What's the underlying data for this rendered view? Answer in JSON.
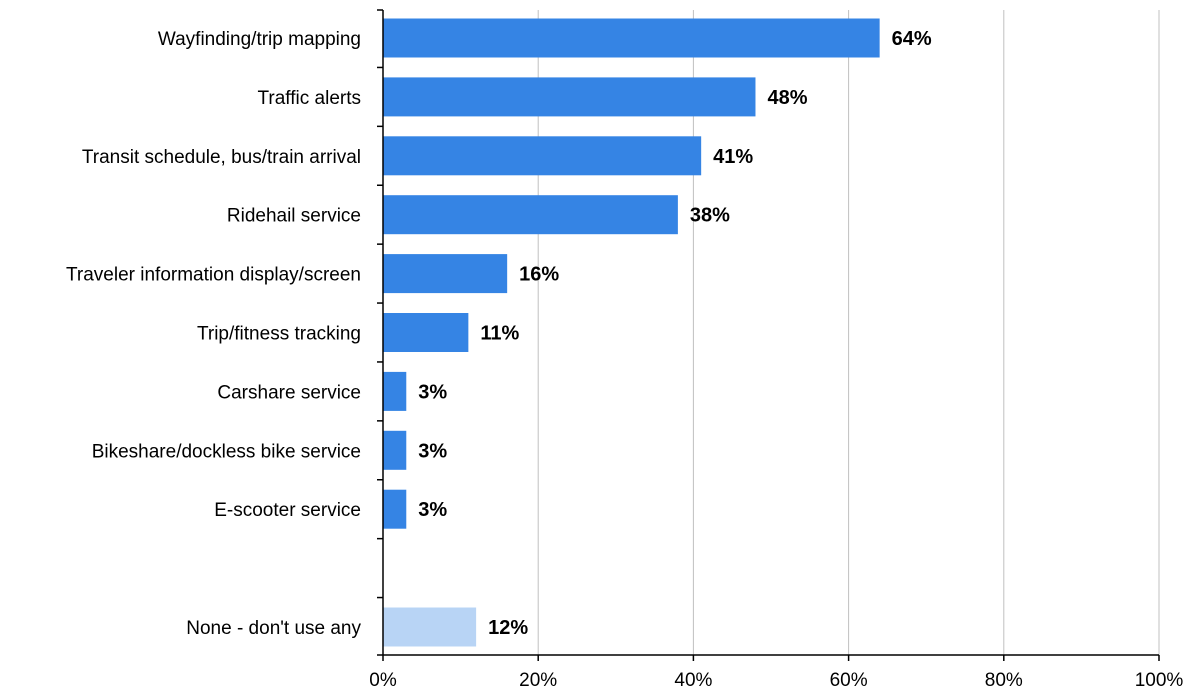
{
  "chart_data": {
    "type": "bar",
    "orientation": "horizontal",
    "categories": [
      "Wayfinding/trip mapping",
      "Traffic alerts",
      "Transit schedule, bus/train arrival",
      "Ridehail service",
      "Traveler information display/screen",
      "Trip/fitness tracking",
      "Carshare service",
      "Bikeshare/dockless bike service",
      "E-scooter service",
      "",
      "None - don't use any"
    ],
    "values": [
      64,
      48,
      41,
      38,
      16,
      11,
      3,
      3,
      3,
      null,
      12
    ],
    "value_labels": [
      "64%",
      "48%",
      "41%",
      "38%",
      "16%",
      "11%",
      "3%",
      "3%",
      "3%",
      "",
      "12%"
    ],
    "bar_colors": [
      "#3584e4",
      "#3584e4",
      "#3584e4",
      "#3584e4",
      "#3584e4",
      "#3584e4",
      "#3584e4",
      "#3584e4",
      "#3584e4",
      "#3584e4",
      "#b8d4f5"
    ],
    "xlim": [
      0,
      100
    ],
    "xticks": [
      0,
      20,
      40,
      60,
      80,
      100
    ],
    "xtick_labels": [
      "0%",
      "20%",
      "40%",
      "60%",
      "80%",
      "100%"
    ],
    "grid": "vertical",
    "grid_color": "#c0c0c0",
    "title": "",
    "xlabel": "",
    "ylabel": ""
  }
}
